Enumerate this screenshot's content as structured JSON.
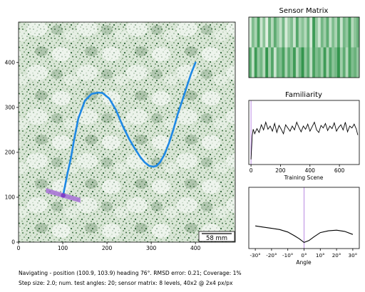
{
  "chart_data": [
    {
      "type": "line",
      "name": "world-view",
      "xlim": [
        0,
        490
      ],
      "ylim": [
        0,
        490
      ],
      "xticks": [
        0,
        100,
        200,
        300,
        400
      ],
      "yticks": [
        0,
        100,
        200,
        300,
        400
      ],
      "background": "speckled green/white texture field",
      "route": {
        "color": "#1e88e5",
        "x": [
          100.9,
          103,
          106,
          110,
          118,
          125,
          135,
          150,
          165,
          180,
          190,
          205,
          220,
          235,
          250,
          262,
          275,
          285,
          295,
          305,
          312,
          320,
          330,
          340,
          350,
          360,
          370,
          380,
          390,
          400
        ],
        "y": [
          103.9,
          115,
          130,
          150,
          185,
          225,
          275,
          315,
          330,
          333,
          332,
          320,
          295,
          260,
          230,
          210,
          190,
          178,
          170,
          168,
          170,
          178,
          195,
          220,
          250,
          285,
          315,
          345,
          375,
          400
        ]
      },
      "position": {
        "x": 100.9,
        "y": 103.9,
        "color": "#7e3fc4"
      },
      "heading_deg": 76,
      "test_angles_band": {
        "color": "#a66fd6",
        "x": [
          62,
          140
        ],
        "y": [
          115,
          93
        ]
      },
      "scalebar": {
        "label": "58 mm"
      }
    },
    {
      "type": "heatmap",
      "title": "Sensor Matrix",
      "rows": 2,
      "columns": 40,
      "top_row": [
        0.15,
        0.55,
        0.35,
        0.8,
        0.2,
        0.5,
        0.1,
        0.65,
        0.3,
        0.7,
        0.45,
        0.25,
        0.6,
        0.15,
        0.4,
        0.55,
        0.2,
        0.75,
        0.35,
        0.5,
        0.3,
        0.65,
        0.15,
        0.85,
        0.45,
        0.2,
        0.6,
        0.4,
        0.7,
        0.25,
        0.55,
        0.35,
        0.75,
        0.2,
        0.6,
        0.45,
        0.8,
        0.3,
        0.5,
        0.65
      ],
      "bottom_row": [
        0.7,
        0.25,
        0.85,
        0.45,
        0.6,
        0.3,
        0.9,
        0.4,
        0.75,
        0.2,
        0.65,
        0.55,
        0.8,
        0.35,
        0.7,
        0.5,
        0.85,
        0.3,
        0.6,
        0.9,
        0.45,
        0.7,
        0.25,
        0.8,
        0.55,
        0.65,
        0.4,
        0.85,
        0.35,
        0.75,
        0.5,
        0.6,
        0.9,
        0.4,
        0.7,
        0.3,
        0.8,
        0.55,
        0.65,
        0.45
      ],
      "colormap": [
        "#f4fbf2",
        "#1f8a3c"
      ]
    },
    {
      "type": "line",
      "title": "Familiarity",
      "xlabel": "Training Scene",
      "xlim": [
        -15,
        735
      ],
      "xticks": [
        0,
        200,
        400,
        600
      ],
      "ylim": [
        0,
        1
      ],
      "current_marker": {
        "x": 0,
        "color": "#b37fe0"
      },
      "series": [
        {
          "color": "#000000",
          "x": [
            0,
            8,
            15,
            25,
            40,
            55,
            70,
            85,
            100,
            115,
            130,
            145,
            160,
            175,
            190,
            205,
            220,
            235,
            250,
            265,
            280,
            295,
            310,
            325,
            340,
            355,
            370,
            385,
            400,
            415,
            430,
            445,
            460,
            475,
            490,
            505,
            520,
            535,
            550,
            565,
            580,
            595,
            610,
            625,
            640,
            655,
            670,
            685,
            700,
            715,
            725
          ],
          "y": [
            0.08,
            0.45,
            0.55,
            0.48,
            0.56,
            0.5,
            0.62,
            0.54,
            0.66,
            0.55,
            0.6,
            0.52,
            0.64,
            0.5,
            0.61,
            0.55,
            0.48,
            0.62,
            0.57,
            0.52,
            0.6,
            0.54,
            0.66,
            0.58,
            0.51,
            0.6,
            0.55,
            0.63,
            0.52,
            0.59,
            0.66,
            0.54,
            0.5,
            0.61,
            0.57,
            0.64,
            0.53,
            0.6,
            0.56,
            0.65,
            0.52,
            0.58,
            0.62,
            0.54,
            0.66,
            0.51,
            0.6,
            0.57,
            0.63,
            0.55,
            0.46
          ]
        }
      ]
    },
    {
      "type": "line",
      "xlabel": "Angle",
      "xlim": [
        -34,
        34
      ],
      "xticks": [
        -30,
        -20,
        -10,
        0,
        10,
        20,
        30
      ],
      "xtick_labels": [
        "-30°",
        "-20°",
        "-10°",
        "0°",
        "10°",
        "20°",
        "30°"
      ],
      "ylim": [
        0,
        1
      ],
      "best_angle_marker": {
        "x": 0,
        "color": "#b37fe0"
      },
      "series": [
        {
          "color": "#000000",
          "x": [
            -30,
            -25,
            -20,
            -15,
            -10,
            -6,
            -3,
            0,
            3,
            6,
            10,
            15,
            20,
            25,
            30
          ],
          "y": [
            0.37,
            0.35,
            0.33,
            0.31,
            0.27,
            0.21,
            0.16,
            0.1,
            0.13,
            0.19,
            0.26,
            0.29,
            0.3,
            0.28,
            0.23
          ]
        }
      ]
    }
  ],
  "status": {
    "line1": "Navigating - position (100.9, 103.9) heading 76°. RMSD error: 0.21; Coverage: 1%",
    "line2": "Step size: 2.0; num. test angles: 20; sensor matrix: 8 levels, 40x2 @ 2x4 px/px"
  }
}
